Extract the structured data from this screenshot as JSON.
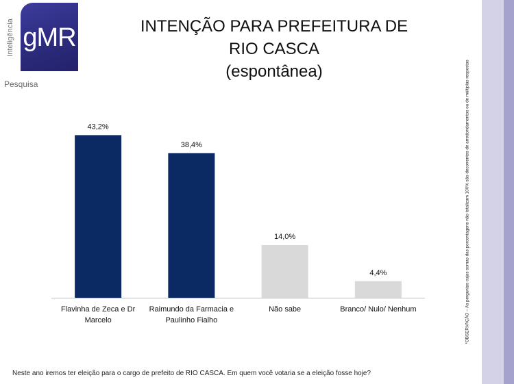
{
  "logo": {
    "mark": "gMR",
    "vertical_text": "Inteligência",
    "subtitle": "Pesquisa"
  },
  "title_lines": [
    "INTENÇÃO PARA PREFEITURA DE",
    "RIO CASCA",
    "(espontânea)"
  ],
  "side_note": "*OBSERVAÇÃO – As perguntas cujas somas das porcentagens não totalizam 100% são decorrentes de arredondamentos ou de múltiplas respostas",
  "question": "Neste ano iremos ter eleição para o cargo de prefeito de RIO CASCA. Em quem você votaria se a eleição fosse hoje?",
  "colors": {
    "candidate_bar": "#0b2a63",
    "other_bar": "#d9d9d9",
    "accent_bar_light": "#d4d2e6",
    "accent_bar_dark": "#a5a3cd"
  },
  "chart_data": {
    "type": "bar",
    "title": "INTENÇÃO PARA PREFEITURA DE RIO CASCA (espontânea)",
    "xlabel": "",
    "ylabel": "",
    "ylim": [
      0,
      50
    ],
    "grid": false,
    "categories": [
      [
        "Flavinha de Zeca e Dr",
        "Marcelo"
      ],
      [
        "Raimundo da Farmacia e",
        "Paulinho Fialho"
      ],
      [
        "Não sabe"
      ],
      [
        "Branco/ Nulo/ Nenhum"
      ]
    ],
    "values": [
      43.2,
      38.4,
      14.0,
      4.4
    ],
    "data_labels": [
      "43,2%",
      "38,4%",
      "14,0%",
      "4,4%"
    ],
    "bar_colors": [
      "#0b2a63",
      "#0b2a63",
      "#d9d9d9",
      "#d9d9d9"
    ]
  }
}
